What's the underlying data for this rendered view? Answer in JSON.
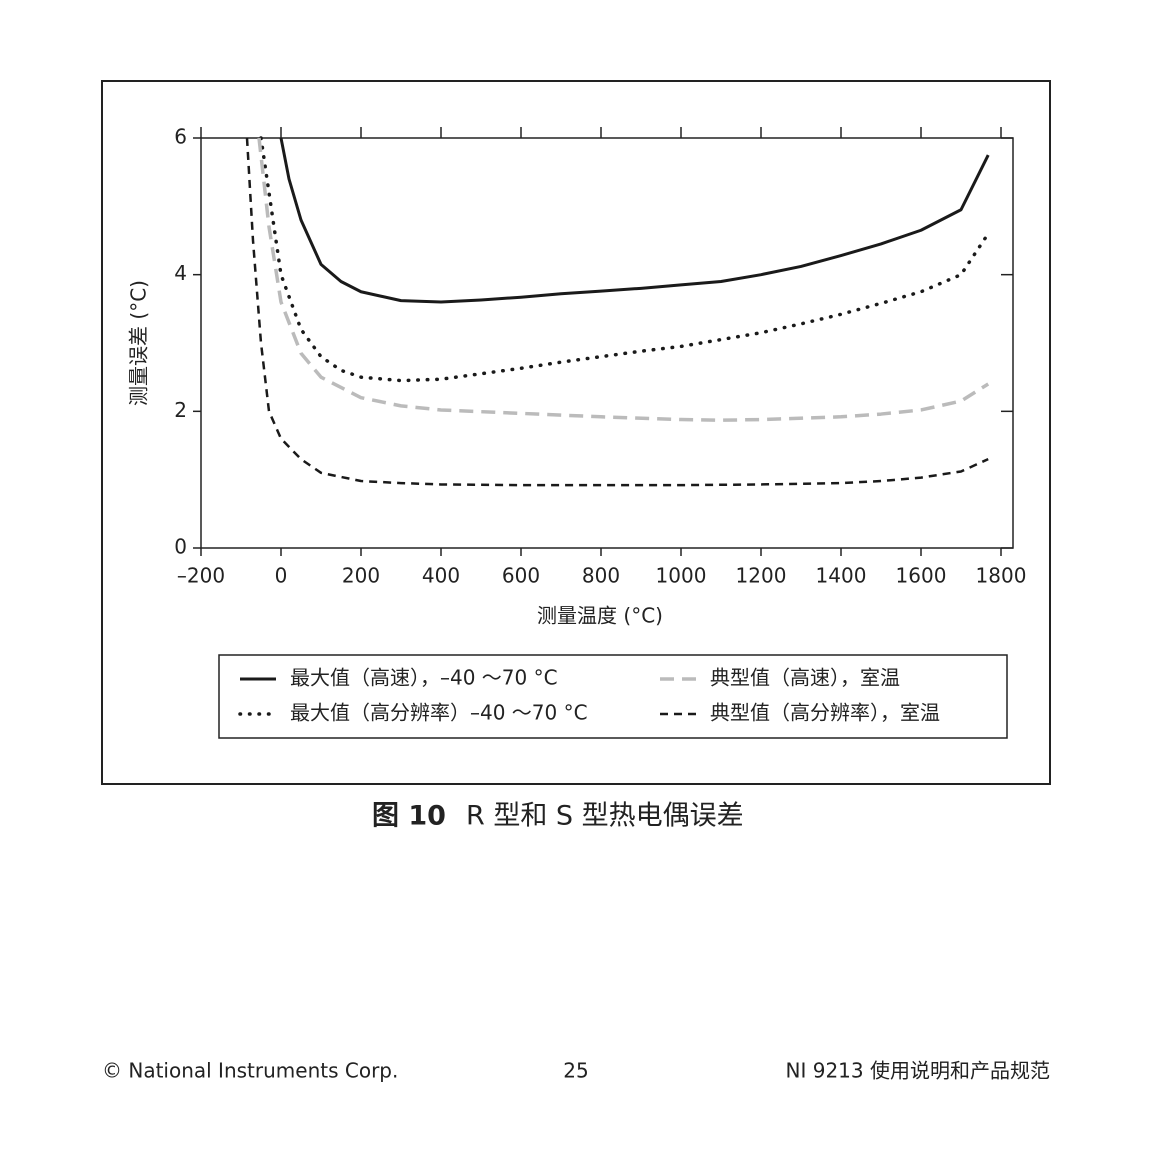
{
  "chart_data": {
    "type": "line",
    "xlabel": "测量温度 (°C)",
    "ylabel": "测量误差 (°C)",
    "xlim": [
      -200,
      1830
    ],
    "ylim": [
      0,
      6
    ],
    "xticks": [
      {
        "value": -200,
        "label": "–200"
      },
      0,
      200,
      400,
      600,
      800,
      1000,
      1200,
      1400,
      1600,
      1800
    ],
    "yticks": [
      0,
      2,
      4,
      6
    ],
    "series": [
      {
        "name": "最大值（高速），–40 ～70 °C",
        "color": "#1a1a1a",
        "dash": "solid",
        "x": [
          0,
          20,
          50,
          100,
          150,
          200,
          300,
          400,
          500,
          600,
          700,
          800,
          900,
          1000,
          1100,
          1200,
          1300,
          1400,
          1500,
          1600,
          1700,
          1768
        ],
        "values": [
          6,
          5.4,
          4.8,
          4.15,
          3.9,
          3.75,
          3.62,
          3.6,
          3.63,
          3.67,
          3.72,
          3.76,
          3.8,
          3.85,
          3.9,
          4.0,
          4.12,
          4.28,
          4.45,
          4.65,
          4.95,
          5.75
        ]
      },
      {
        "name": "最大值（高分辨率）–40 ～70 °C",
        "color": "#1a1a1a",
        "dash": "dotted",
        "x": [
          -50,
          -20,
          0,
          50,
          100,
          150,
          200,
          300,
          400,
          500,
          600,
          700,
          800,
          900,
          1000,
          1100,
          1200,
          1300,
          1400,
          1500,
          1600,
          1700,
          1768
        ],
        "values": [
          6,
          4.8,
          4.0,
          3.2,
          2.8,
          2.6,
          2.5,
          2.45,
          2.47,
          2.55,
          2.63,
          2.72,
          2.8,
          2.88,
          2.95,
          3.05,
          3.15,
          3.28,
          3.42,
          3.58,
          3.75,
          4.0,
          4.6
        ]
      },
      {
        "name": "典型值（高速），室温",
        "color": "#bbbbbb",
        "dash": "dashed",
        "x": [
          -55,
          -30,
          0,
          50,
          100,
          150,
          200,
          300,
          400,
          600,
          800,
          1000,
          1100,
          1200,
          1400,
          1500,
          1600,
          1700,
          1768
        ],
        "values": [
          6,
          4.7,
          3.6,
          2.85,
          2.5,
          2.35,
          2.2,
          2.08,
          2.02,
          1.97,
          1.92,
          1.88,
          1.87,
          1.88,
          1.92,
          1.96,
          2.02,
          2.15,
          2.4
        ]
      },
      {
        "name": "典型值（高分辨率），室温",
        "color": "#1a1a1a",
        "dash": "short-dashed",
        "x": [
          -85,
          -70,
          -50,
          -30,
          0,
          50,
          100,
          200,
          300,
          400,
          600,
          800,
          1000,
          1200,
          1400,
          1500,
          1600,
          1700,
          1768
        ],
        "values": [
          6,
          4.5,
          3.0,
          2.0,
          1.6,
          1.3,
          1.1,
          0.98,
          0.95,
          0.93,
          0.92,
          0.92,
          0.92,
          0.93,
          0.95,
          0.98,
          1.03,
          1.12,
          1.3
        ]
      }
    ]
  },
  "caption": {
    "number": "图 10",
    "text": "R 型和 S 型热电偶误差"
  },
  "footer": {
    "left": "© National Instruments Corp.",
    "page": "25",
    "right": "NI 9213 使用说明和产品规范"
  }
}
